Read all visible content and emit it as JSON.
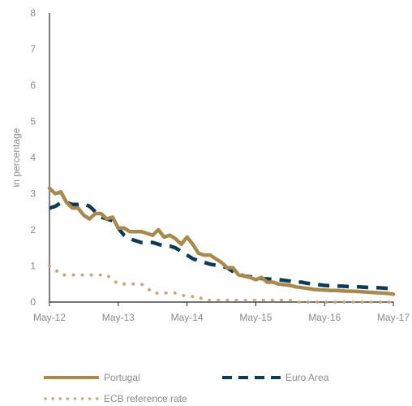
{
  "chart_data": {
    "type": "line",
    "ylabel": "in percentage",
    "ylim": [
      0,
      8
    ],
    "yticks": [
      "0",
      "1",
      "2",
      "3",
      "4",
      "5",
      "6",
      "7",
      "8"
    ],
    "xticks": [
      "May-12",
      "May-13",
      "May-14",
      "May-15",
      "May-16",
      "May-17"
    ],
    "grid": false,
    "legend_position": "bottom",
    "series": [
      {
        "name": "Portugal",
        "color": "#a88a4e",
        "style": "solid",
        "x": [
          0,
          1,
          2,
          3,
          4,
          5,
          6,
          7,
          8,
          9,
          10,
          11,
          12,
          13,
          14,
          15,
          16,
          17,
          18,
          19,
          20,
          21,
          22,
          23,
          24,
          25,
          26,
          27,
          28,
          29,
          30,
          31,
          32,
          33,
          34,
          35,
          36,
          37,
          38,
          39,
          40,
          41,
          42,
          43,
          44,
          45,
          46,
          47,
          48,
          49,
          50,
          51,
          52,
          53,
          54,
          55,
          56,
          57,
          58,
          59,
          60
        ],
        "values": [
          3.15,
          3.0,
          3.05,
          2.75,
          2.6,
          2.6,
          2.4,
          2.3,
          2.45,
          2.45,
          2.3,
          2.35,
          2.05,
          2.05,
          1.95,
          1.95,
          1.95,
          1.9,
          1.85,
          2.0,
          1.8,
          1.85,
          1.75,
          1.6,
          1.8,
          1.6,
          1.35,
          1.3,
          1.3,
          1.2,
          1.1,
          0.95,
          0.95,
          0.75,
          0.72,
          0.68,
          0.62,
          0.68,
          0.55,
          0.55,
          0.5,
          0.48,
          0.46,
          0.42,
          0.4,
          0.38,
          0.35,
          0.34,
          0.33,
          0.32,
          0.32,
          0.31,
          0.3,
          0.3,
          0.29,
          0.28,
          0.27,
          0.26,
          0.25,
          0.24,
          0.22
        ]
      },
      {
        "name": "Euro Area",
        "color": "#0d3a55",
        "style": "dashed",
        "x": [
          0,
          1,
          2,
          3,
          4,
          5,
          6,
          7,
          8,
          9,
          10,
          11,
          12,
          13,
          14,
          15,
          16,
          17,
          18,
          19,
          20,
          21,
          22,
          23,
          24,
          25,
          26,
          27,
          28,
          29,
          30,
          31,
          32,
          33,
          34,
          35,
          36,
          37,
          38,
          39,
          40,
          41,
          42,
          43,
          44,
          45,
          46,
          47,
          48,
          49,
          50,
          51,
          52,
          53,
          54,
          55,
          56,
          57,
          58,
          59,
          60
        ],
        "values": [
          2.6,
          2.65,
          2.75,
          2.75,
          2.7,
          2.7,
          2.72,
          2.65,
          2.5,
          2.35,
          2.3,
          2.25,
          2.05,
          1.85,
          1.75,
          1.7,
          1.65,
          1.65,
          1.65,
          1.6,
          1.55,
          1.55,
          1.5,
          1.4,
          1.3,
          1.2,
          1.15,
          1.1,
          1.05,
          1.02,
          1.0,
          0.95,
          0.85,
          0.78,
          0.72,
          0.7,
          0.68,
          0.65,
          0.64,
          0.63,
          0.62,
          0.6,
          0.58,
          0.55,
          0.55,
          0.52,
          0.5,
          0.48,
          0.46,
          0.45,
          0.44,
          0.44,
          0.43,
          0.42,
          0.42,
          0.41,
          0.4,
          0.4,
          0.39,
          0.38,
          0.38
        ]
      },
      {
        "name": "ECB reference rate",
        "color": "#c4ab7e",
        "style": "dotted",
        "x": [
          0,
          1,
          2,
          3,
          4,
          5,
          6,
          7,
          8,
          9,
          10,
          11,
          12,
          13,
          14,
          15,
          16,
          17,
          18,
          19,
          20,
          21,
          22,
          23,
          24,
          25,
          26,
          27,
          28,
          29,
          30,
          31,
          32,
          33,
          34,
          35,
          36,
          37,
          38,
          39,
          40,
          41,
          42,
          43,
          44,
          45,
          46,
          47,
          48,
          49,
          50,
          51,
          52,
          53,
          54,
          55,
          56,
          57,
          58,
          59,
          60
        ],
        "values": [
          1.0,
          0.9,
          0.75,
          0.75,
          0.75,
          0.75,
          0.75,
          0.75,
          0.75,
          0.75,
          0.75,
          0.62,
          0.5,
          0.5,
          0.5,
          0.5,
          0.5,
          0.4,
          0.25,
          0.25,
          0.25,
          0.25,
          0.25,
          0.2,
          0.15,
          0.15,
          0.15,
          0.05,
          0.05,
          0.05,
          0.05,
          0.05,
          0.05,
          0.05,
          0.05,
          0.05,
          0.05,
          0.05,
          0.05,
          0.05,
          0.05,
          0.05,
          0.05,
          0.0,
          0.0,
          0.0,
          0.0,
          0.0,
          0.0,
          0.0,
          0.0,
          0.0,
          0.0,
          0.0,
          0.0,
          0.0,
          0.0,
          0.0,
          0.0,
          0.0,
          0.0
        ]
      }
    ]
  }
}
